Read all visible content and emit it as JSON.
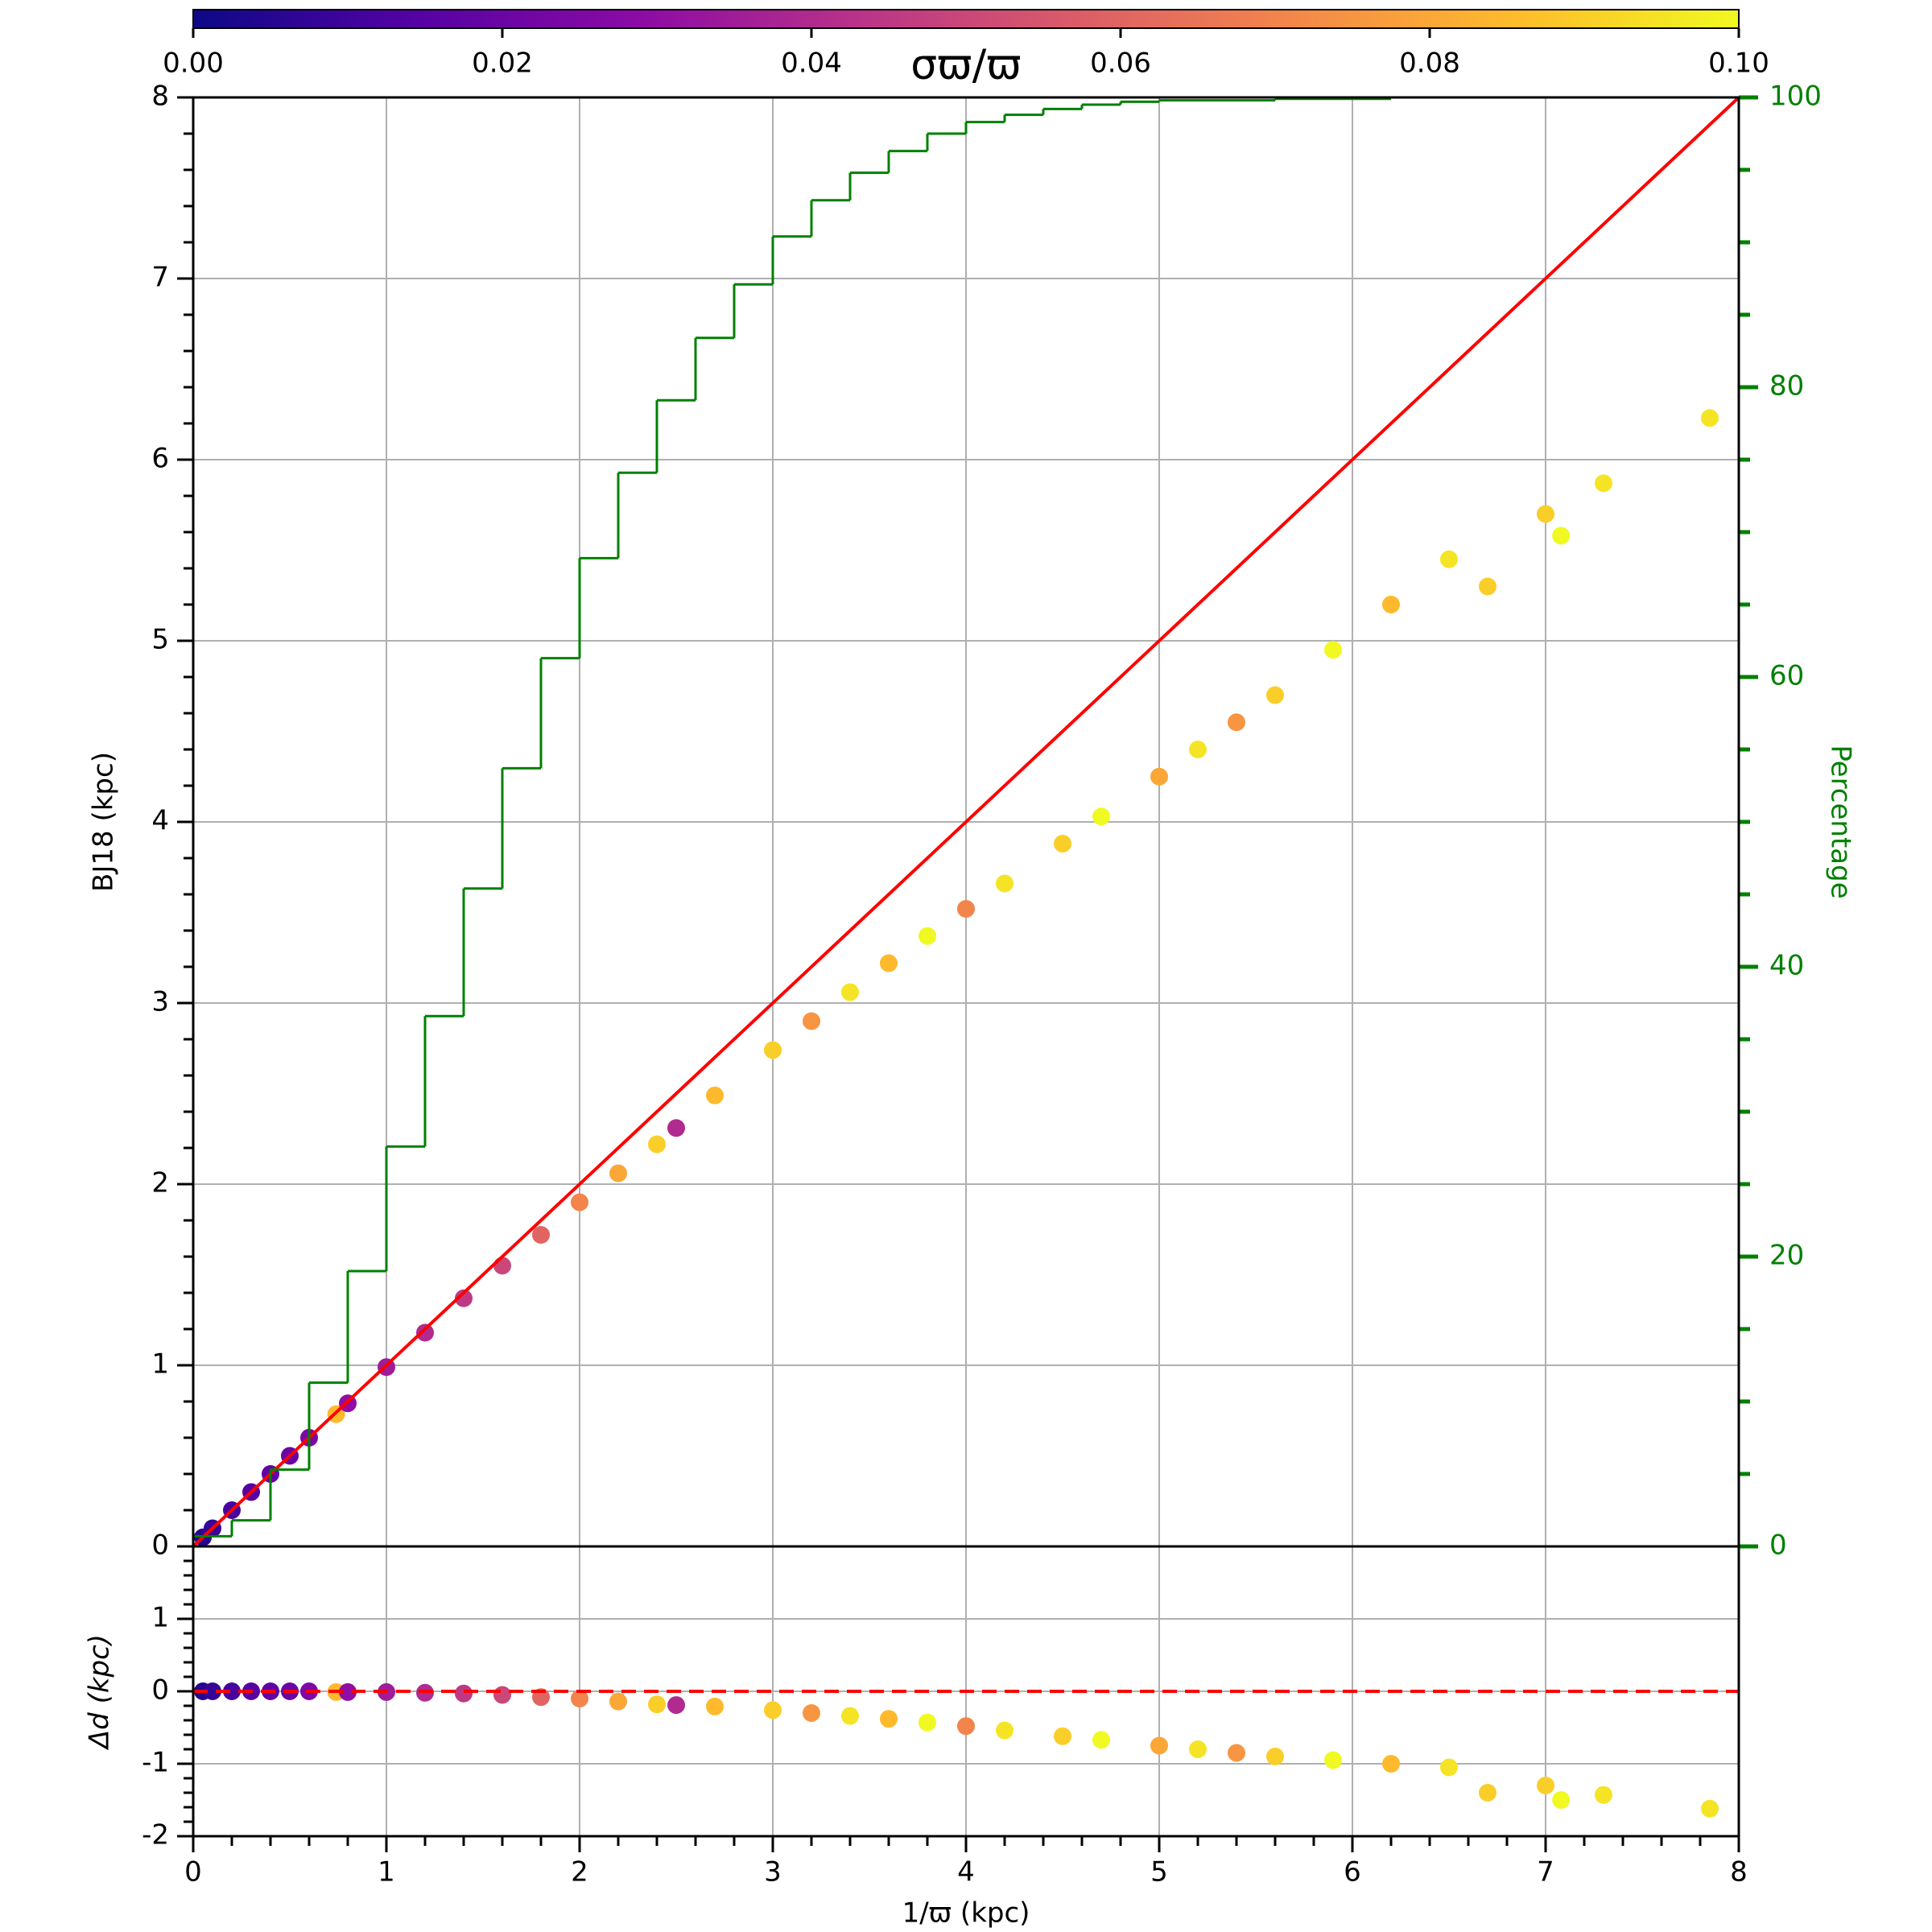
{
  "chart_data": [
    {
      "type": "scatter",
      "ylabel": "BJ18 (kpc)",
      "y2label": "Percentage",
      "xlim": [
        0,
        8
      ],
      "xticks": [
        0,
        1,
        2,
        3,
        4,
        5,
        6,
        7,
        8
      ],
      "xminor": 0.2,
      "ylim": [
        0,
        8
      ],
      "yticks": [
        0,
        1,
        2,
        3,
        4,
        5,
        6,
        7,
        8
      ],
      "yminor": 0.2,
      "y2lim": [
        0,
        100
      ],
      "y2ticks": [
        0,
        20,
        40,
        60,
        80,
        100
      ],
      "y2minor": 5,
      "y2color": "#008000",
      "grid": true,
      "colormap": "plasma",
      "colorbar": {
        "label": "σϖ/ϖ",
        "lim": [
          0,
          0.1
        ],
        "ticks": [
          {
            "value": 0,
            "label": "0.00"
          },
          {
            "value": 0.02,
            "label": "0.02"
          },
          {
            "value": 0.04,
            "label": "0.04"
          },
          {
            "value": 0.06,
            "label": "0.06"
          },
          {
            "value": 0.08,
            "label": "0.08"
          },
          {
            "value": 0.1,
            "label": "0.10"
          }
        ]
      },
      "x": [
        0.05,
        0.1,
        0.2,
        0.3,
        0.4,
        0.5,
        0.6,
        0.74,
        0.8,
        1.0,
        1.2,
        1.4,
        1.6,
        1.8,
        2.0,
        2.2,
        2.4,
        2.5,
        2.7,
        3.0,
        3.2,
        3.4,
        3.6,
        3.8,
        4.0,
        4.2,
        4.5,
        4.7,
        5.0,
        5.2,
        5.4,
        5.6,
        5.9,
        6.2,
        6.5,
        6.7,
        7.0,
        7.08,
        7.3,
        7.85
      ],
      "values": [
        0.05,
        0.1,
        0.2,
        0.3,
        0.4,
        0.5,
        0.6,
        0.73,
        0.79,
        0.99,
        1.18,
        1.37,
        1.55,
        1.72,
        1.9,
        2.06,
        2.22,
        2.31,
        2.49,
        2.74,
        2.9,
        3.06,
        3.22,
        3.37,
        3.52,
        3.66,
        3.88,
        4.03,
        4.25,
        4.4,
        4.55,
        4.7,
        4.95,
        5.2,
        5.45,
        5.3,
        5.7,
        5.58,
        5.87,
        6.23
      ],
      "c": [
        0.005,
        0.008,
        0.012,
        0.015,
        0.018,
        0.02,
        0.025,
        0.085,
        0.03,
        0.035,
        0.04,
        0.045,
        0.05,
        0.06,
        0.07,
        0.08,
        0.09,
        0.04,
        0.085,
        0.09,
        0.075,
        0.095,
        0.085,
        0.1,
        0.07,
        0.095,
        0.09,
        0.1,
        0.08,
        0.095,
        0.075,
        0.09,
        0.1,
        0.085,
        0.095,
        0.09,
        0.09,
        0.1,
        0.095,
        0.095
      ],
      "reference_line": {
        "x": [
          0,
          8
        ],
        "y": [
          0,
          8
        ],
        "color": "#ff0000"
      },
      "cumulative": {
        "axis": "y2",
        "color": "#008000",
        "bins": [
          0,
          0.2,
          0.4,
          0.6,
          0.8,
          1,
          1.2,
          1.4,
          1.6,
          1.8,
          2,
          2.2,
          2.4,
          2.6,
          2.8,
          3,
          3.2,
          3.4,
          3.6,
          3.8,
          4,
          4.2,
          4.4,
          4.6,
          4.8,
          5,
          5.6,
          6.2
        ],
        "values": [
          0.7,
          1.8,
          5.3,
          11.3,
          19.0,
          27.6,
          36.6,
          45.4,
          53.7,
          61.3,
          68.2,
          74.1,
          79.1,
          83.4,
          87.1,
          90.4,
          92.9,
          94.8,
          96.3,
          97.5,
          98.3,
          98.8,
          99.2,
          99.5,
          99.7,
          99.8,
          99.9
        ]
      }
    },
    {
      "type": "scatter",
      "xlabel": "1/ϖ (kpc)",
      "ylabel": "Δd (kpc)",
      "xlim": [
        0,
        8
      ],
      "xticks": [
        0,
        1,
        2,
        3,
        4,
        5,
        6,
        7,
        8
      ],
      "xminor": 0.2,
      "ylim": [
        -2,
        2
      ],
      "yticks": [
        -2,
        -1,
        0,
        1
      ],
      "yminor": 0.2,
      "grid": true,
      "colormap": "plasma",
      "clim": [
        0,
        0.1
      ],
      "reference_line": {
        "x": [
          0,
          8
        ],
        "y": [
          0,
          0
        ],
        "color": "#ff0000",
        "dashed": true
      },
      "x": [
        0.05,
        0.1,
        0.2,
        0.3,
        0.4,
        0.5,
        0.6,
        0.74,
        0.8,
        1.0,
        1.2,
        1.4,
        1.6,
        1.8,
        2.0,
        2.2,
        2.4,
        2.5,
        2.7,
        3.0,
        3.2,
        3.4,
        3.6,
        3.8,
        4.0,
        4.2,
        4.5,
        4.7,
        5.0,
        5.2,
        5.4,
        5.6,
        5.9,
        6.2,
        6.5,
        6.7,
        7.0,
        7.08,
        7.3,
        7.85
      ],
      "values": [
        0,
        0,
        0,
        0,
        0,
        0,
        0,
        -0.01,
        -0.01,
        -0.01,
        -0.02,
        -0.03,
        -0.05,
        -0.08,
        -0.1,
        -0.14,
        -0.18,
        -0.19,
        -0.21,
        -0.26,
        -0.3,
        -0.34,
        -0.38,
        -0.43,
        -0.48,
        -0.54,
        -0.62,
        -0.67,
        -0.75,
        -0.8,
        -0.85,
        -0.9,
        -0.95,
        -1.0,
        -1.05,
        -1.4,
        -1.3,
        -1.5,
        -1.43,
        -1.62
      ],
      "c": [
        0.005,
        0.008,
        0.012,
        0.015,
        0.018,
        0.02,
        0.025,
        0.085,
        0.03,
        0.035,
        0.04,
        0.045,
        0.05,
        0.06,
        0.07,
        0.08,
        0.09,
        0.04,
        0.085,
        0.09,
        0.075,
        0.095,
        0.085,
        0.1,
        0.07,
        0.095,
        0.09,
        0.1,
        0.08,
        0.095,
        0.075,
        0.09,
        0.1,
        0.085,
        0.095,
        0.09,
        0.09,
        0.1,
        0.095,
        0.095
      ]
    }
  ]
}
